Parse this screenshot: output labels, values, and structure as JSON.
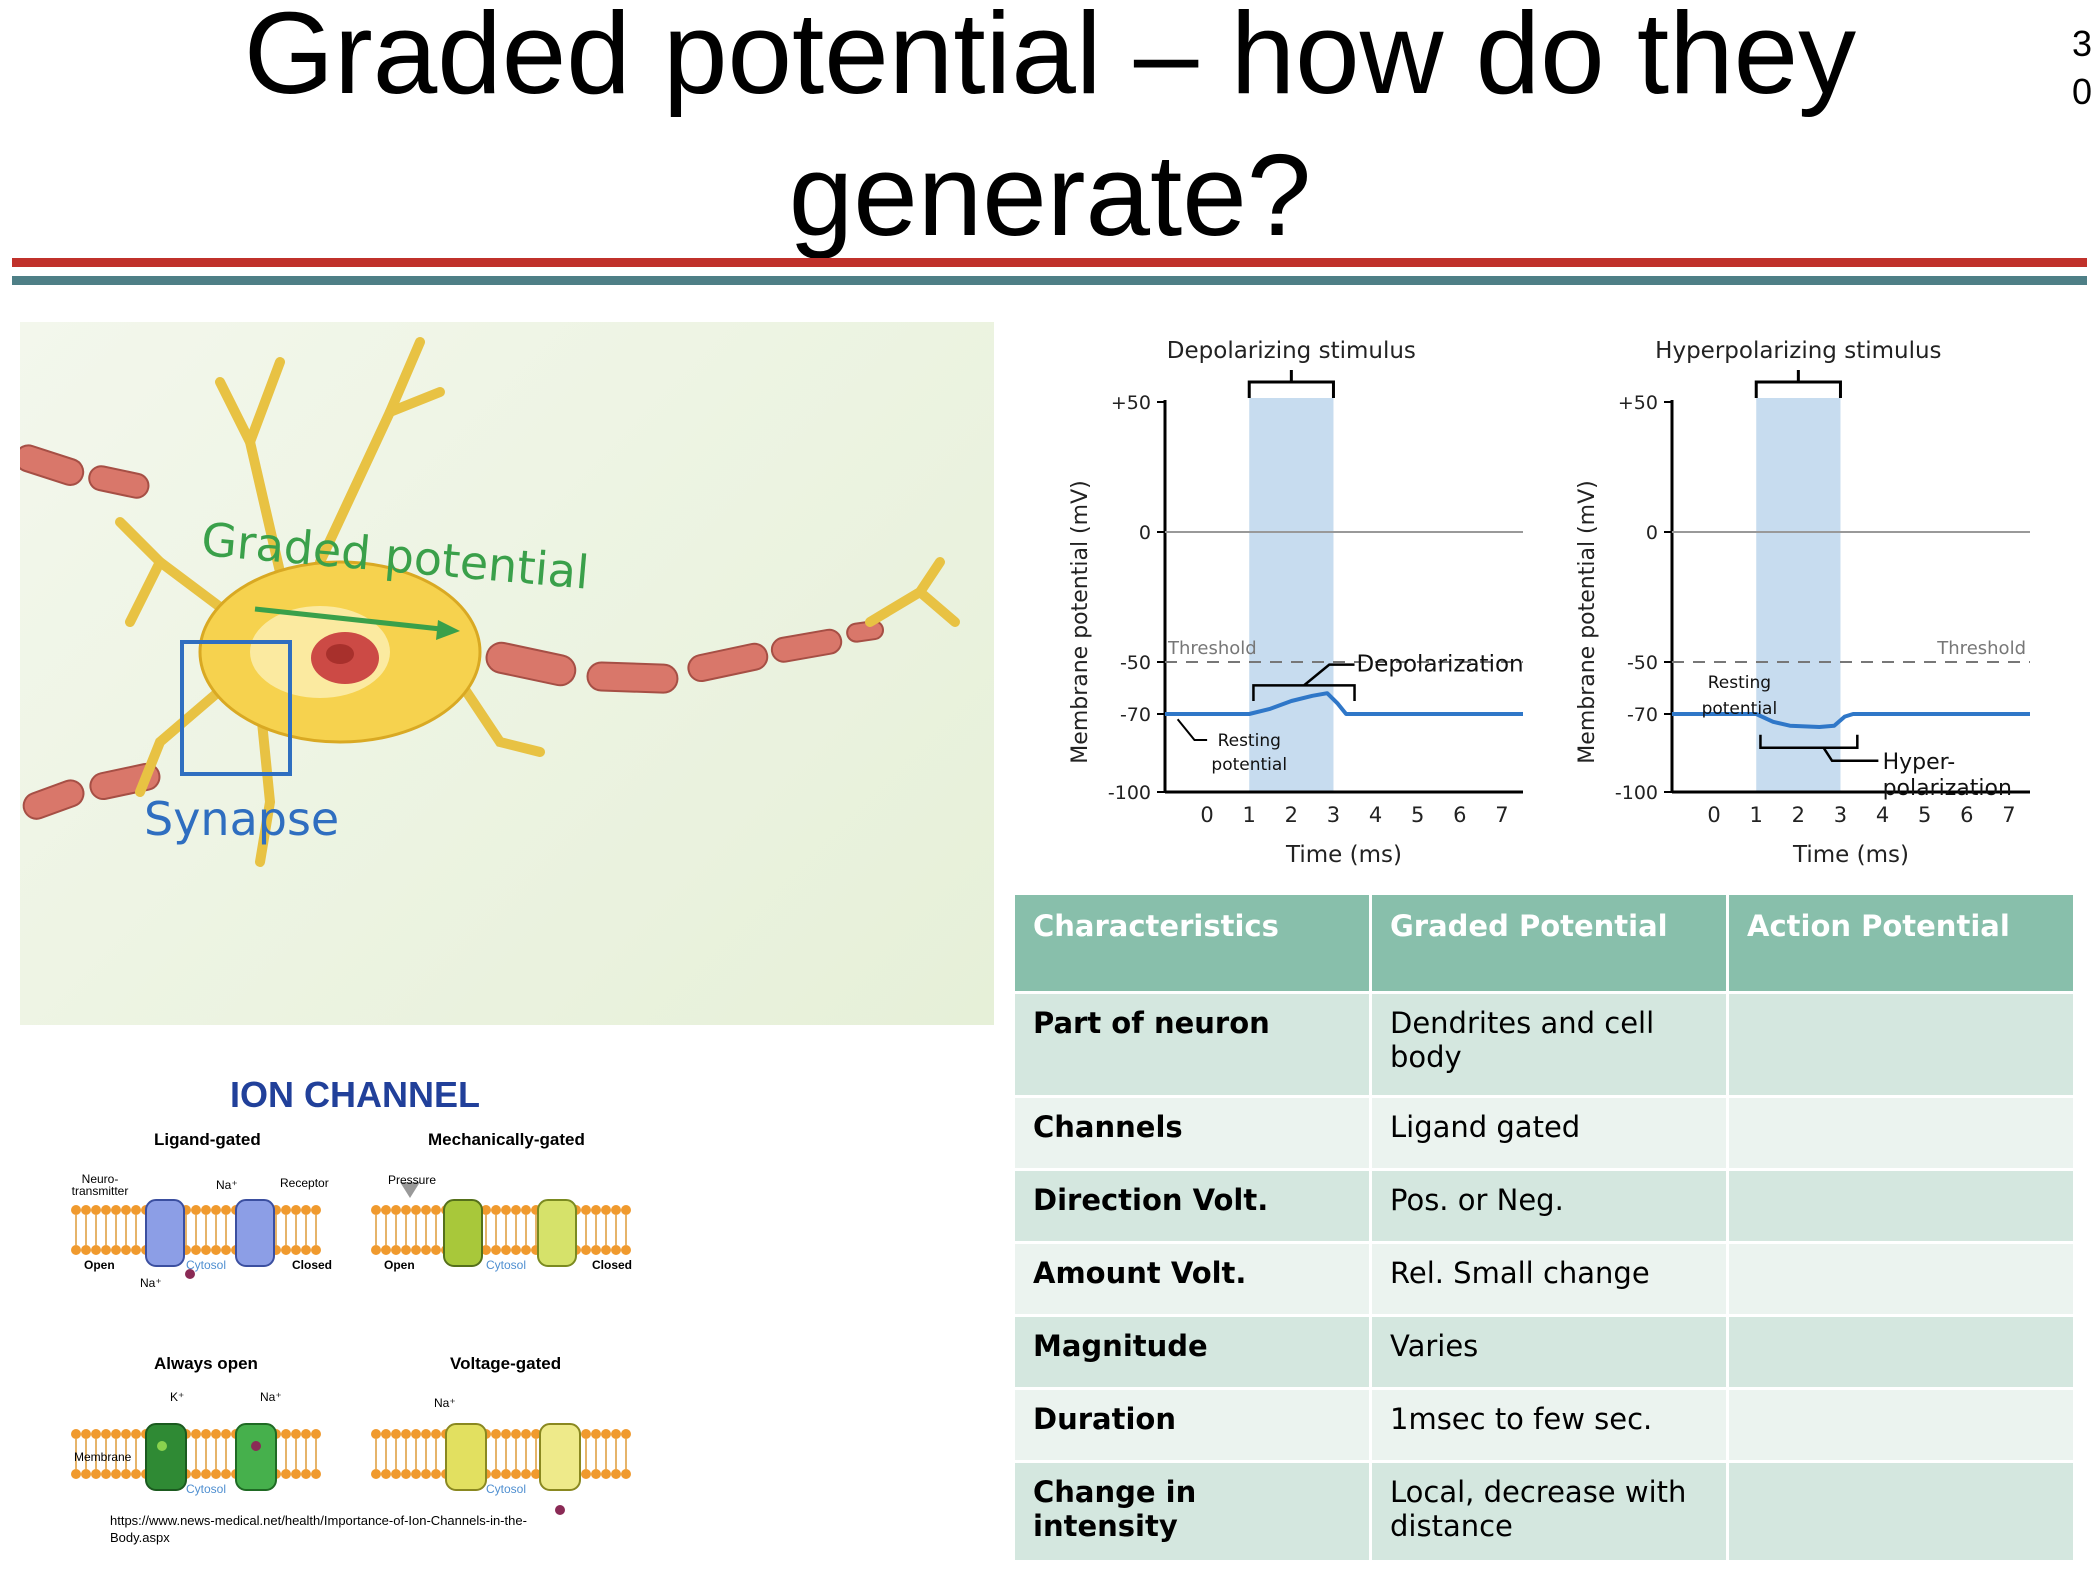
{
  "slide": {
    "title": "Graded potential – how do they generate?",
    "page_number": "3\n0"
  },
  "neuron_figure": {
    "graded_potential_label": "Graded potential",
    "synapse_label": "Synapse"
  },
  "chart_data": [
    {
      "type": "line",
      "title": "Depolarizing stimulus",
      "xlabel": "Time (ms)",
      "ylabel": "Membrane potential (mV)",
      "x_ticks": [
        "0",
        "1",
        "2",
        "3",
        "4",
        "5",
        "6",
        "7"
      ],
      "y_ticks": [
        "+50",
        "0",
        "-50",
        "-70",
        "-100"
      ],
      "xlim": [
        -1,
        7.5
      ],
      "ylim": [
        -100,
        50
      ],
      "stimulus_window": [
        1,
        3
      ],
      "threshold": -50,
      "series": [
        {
          "x": [
            -1,
            1,
            1.5,
            2,
            2.5,
            2.85,
            3.1,
            3.3,
            7.5
          ],
          "y": [
            -70,
            -70,
            -68,
            -65,
            -63,
            -62,
            -66,
            -70,
            -70
          ]
        }
      ],
      "annotations": {
        "threshold": "Threshold",
        "event": "Depolarization",
        "resting": "Resting\npotential"
      }
    },
    {
      "type": "line",
      "title": "Hyperpolarizing stimulus",
      "xlabel": "Time (ms)",
      "ylabel": "Membrane potential (mV)",
      "x_ticks": [
        "0",
        "1",
        "2",
        "3",
        "4",
        "5",
        "6",
        "7"
      ],
      "y_ticks": [
        "+50",
        "0",
        "-50",
        "-70",
        "-100"
      ],
      "xlim": [
        -1,
        7.5
      ],
      "ylim": [
        -100,
        50
      ],
      "stimulus_window": [
        1,
        3
      ],
      "threshold": -50,
      "series": [
        {
          "x": [
            -1,
            1,
            1.4,
            1.8,
            2.5,
            2.85,
            3.1,
            3.3,
            7.5
          ],
          "y": [
            -70,
            -70,
            -73,
            -74.5,
            -75,
            -74.5,
            -71,
            -70,
            -70
          ]
        }
      ],
      "annotations": {
        "threshold": "Threshold",
        "event": "Hyper-\npolarization",
        "resting": "Resting\npotential"
      }
    }
  ],
  "table": {
    "headers": [
      "Characteristics",
      "Graded Potential",
      "Action Potential"
    ],
    "rows": [
      [
        "Part of neuron",
        "Dendrites and cell body",
        ""
      ],
      [
        "Channels",
        "Ligand gated",
        ""
      ],
      [
        "Direction Volt.",
        "Pos. or Neg.",
        ""
      ],
      [
        "Amount Volt.",
        "Rel. Small change",
        ""
      ],
      [
        "Magnitude",
        "Varies",
        ""
      ],
      [
        "Duration",
        "1msec to few sec.",
        ""
      ],
      [
        "Change in intensity",
        "Local, decrease with distance",
        ""
      ]
    ]
  },
  "ion_channel": {
    "title": "ION CHANNEL",
    "types": [
      "Ligand-gated",
      "Mechanically-gated",
      "Always open",
      "Voltage-gated"
    ],
    "labels": {
      "neurotransmitter": "Neuro-\ntransmitter",
      "receptor": "Receptor",
      "na": "Na⁺",
      "k": "K⁺",
      "pressure": "Pressure",
      "open": "Open",
      "closed": "Closed",
      "cytosol": "Cytosol",
      "membrane": "Membrane"
    },
    "source_url": "https://www.news-medical.net/health/Importance-of-Ion-Channels-in-the-Body.aspx"
  }
}
